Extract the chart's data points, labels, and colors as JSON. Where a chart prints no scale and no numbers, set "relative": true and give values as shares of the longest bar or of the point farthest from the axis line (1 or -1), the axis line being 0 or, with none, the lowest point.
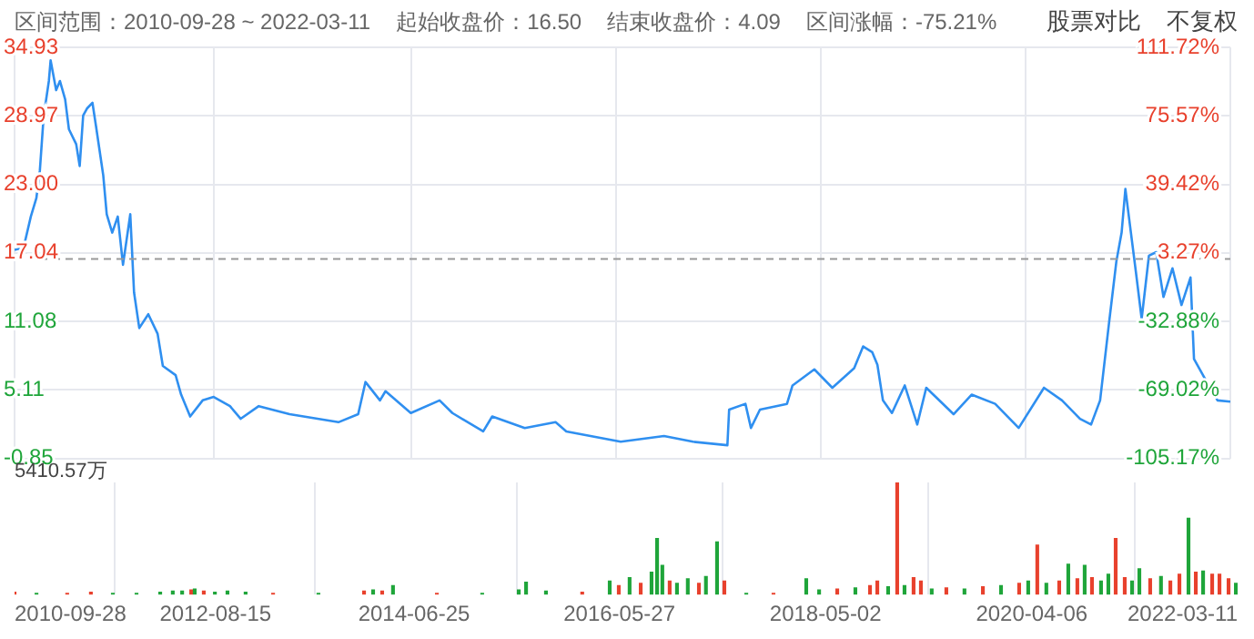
{
  "chart_data": [
    {
      "type": "line",
      "annotations": [
        "区间范围：2010-09-28 ~ 2022-03-11",
        "起始收盘价：16.50",
        "结束收盘价：4.09",
        "区间涨幅：-75.21%",
        "股票对比",
        "不复权"
      ],
      "x": [
        "2010-09-28",
        "2010-10-29",
        "2010-11-23",
        "2010-12-12",
        "2010-12-24",
        "2011-01-06",
        "2011-01-24",
        "2011-01-30",
        "2011-02-18",
        "2011-03-03",
        "2011-03-21",
        "2011-04-03",
        "2011-04-28",
        "2011-05-10",
        "2011-05-22",
        "2011-06-04",
        "2011-06-23",
        "2011-07-05",
        "2011-07-30",
        "2011-08-11",
        "2011-08-30",
        "2011-09-18",
        "2011-10-06",
        "2011-10-31",
        "2011-11-13",
        "2011-12-01",
        "2012-01-01",
        "2012-02-02",
        "2012-02-20",
        "2012-04-04",
        "2012-04-23",
        "2012-05-24",
        "2012-07-06",
        "2012-08-13",
        "2012-10-08",
        "2012-11-14",
        "2013-01-15",
        "2013-05-01",
        "2013-10-16",
        "2013-12-23",
        "2014-01-17",
        "2014-03-08",
        "2014-03-27",
        "2014-06-22",
        "2014-09-29",
        "2014-11-12",
        "2015-02-26",
        "2015-03-29",
        "2015-07-19",
        "2015-11-02",
        "2015-12-09",
        "2016-06-13",
        "2016-11-09",
        "2017-02-17",
        "2017-06-15",
        "2017-06-21",
        "2017-08-16",
        "2017-09-04",
        "2017-10-05",
        "2018-01-06",
        "2018-01-25",
        "2018-04-10",
        "2018-06-11",
        "2018-08-25",
        "2018-09-25",
        "2018-10-26",
        "2018-11-13",
        "2018-12-02",
        "2019-01-02",
        "2019-02-15",
        "2019-03-30",
        "2019-04-30",
        "2019-08-02",
        "2019-10-03",
        "2019-12-23",
        "2020-03-13",
        "2020-06-08",
        "2020-08-09",
        "2020-10-10",
        "2020-11-17",
        "2020-12-18",
        "2021-01-18",
        "2021-02-12",
        "2021-03-02",
        "2021-03-15",
        "2021-04-03",
        "2021-04-21",
        "2021-05-10",
        "2021-06-04",
        "2021-06-29",
        "2021-07-24",
        "2021-08-24",
        "2021-09-24",
        "2021-10-25",
        "2021-11-06",
        "2021-12-20",
        "2022-01-26",
        "2022-03-11"
      ],
      "series": [
        {
          "color": "#2f8ff0",
          "values": [
            17.3,
            17.5,
            20.2,
            21.8,
            24.2,
            28.9,
            32.0,
            33.8,
            31.2,
            32.0,
            30.4,
            27.8,
            26.5,
            24.6,
            29.0,
            29.6,
            30.1,
            28.1,
            23.8,
            20.4,
            18.8,
            20.2,
            16.0,
            20.4,
            13.6,
            10.5,
            11.7,
            10.0,
            7.2,
            6.4,
            4.7,
            2.8,
            4.2,
            4.5,
            3.7,
            2.6,
            3.7,
            3.0,
            2.3,
            3.0,
            5.8,
            4.2,
            5.0,
            3.1,
            4.2,
            3.1,
            1.5,
            2.8,
            1.8,
            2.3,
            1.5,
            0.6,
            1.1,
            0.6,
            0.3,
            3.4,
            3.9,
            1.8,
            3.4,
            3.9,
            5.5,
            6.9,
            5.3,
            7.0,
            8.9,
            8.4,
            7.3,
            4.2,
            3.1,
            5.5,
            2.1,
            5.3,
            3.0,
            4.7,
            3.9,
            1.8,
            5.3,
            4.2,
            2.6,
            2.1,
            4.2,
            11.0,
            16.3,
            18.8,
            22.6,
            18.8,
            15.2,
            11.3,
            16.8,
            17.1,
            13.2,
            15.7,
            12.5,
            14.9,
            7.8,
            5.8,
            4.2,
            4.09
          ]
        }
      ],
      "xlim": [
        "2010-09-28",
        "2022-03-11"
      ],
      "xticks": [
        "2010-09-28",
        "2012-08-15",
        "2014-06-25",
        "2016-05-27",
        "2018-05-02",
        "2020-04-06",
        "2022-03-11"
      ],
      "ylim": [
        -0.85,
        34.93
      ],
      "yticks": [
        -0.85,
        {
          "value": 5.11,
          "label": "5.11"
        },
        11.08,
        17.04,
        {
          "value": 23,
          "label": "23.00"
        },
        28.97,
        34.93
      ],
      "y2lim": [
        -105.17,
        111.72
      ],
      "y2ticks": [
        {
          "value": -105.17,
          "label": "-105.17%"
        },
        {
          "value": -69.02,
          "label": "-69.02%"
        },
        {
          "value": -32.88,
          "label": "-32.88%"
        },
        {
          "value": 3.27,
          "label": "3.27%"
        },
        {
          "value": 39.42,
          "label": "39.42%"
        },
        {
          "value": 75.57,
          "label": "75.57%"
        },
        {
          "value": 111.72,
          "label": "111.72%"
        }
      ],
      "ref_lines": [
        {
          "axis": "y",
          "value": 16.5,
          "color": "#999999",
          "line_style": "dashed"
        }
      ],
      "grid": true,
      "tick_labels": "y",
      "marker": "none"
    },
    {
      "type": "bar",
      "relative": true,
      "annotations": [
        "5410.57万"
      ],
      "x": [
        "2010-09-28",
        "2010-12-12",
        "2011-03-27",
        "2011-06-16",
        "2011-08-30",
        "2011-11-19",
        "2012-02-08",
        "2012-03-22",
        "2012-04-23",
        "2012-05-24",
        "2012-06-05",
        "2012-07-06",
        "2012-08-13",
        "2012-09-25",
        "2012-11-26",
        "2013-02-28",
        "2013-08-02",
        "2014-01-05",
        "2014-02-05",
        "2014-03-08",
        "2014-04-14",
        "2014-09-11",
        "2015-02-13",
        "2015-06-18",
        "2015-07-13",
        "2015-09-19",
        "2016-01-21",
        "2016-04-24",
        "2016-05-25",
        "2016-07-01",
        "2016-08-08",
        "2016-09-14",
        "2016-10-03",
        "2016-10-21",
        "2016-11-15",
        "2016-12-10",
        "2017-01-16",
        "2017-02-23",
        "2017-03-19",
        "2017-04-26",
        "2017-05-21",
        "2017-08-04",
        "2017-11-05",
        "2018-02-25",
        "2018-04-10",
        "2018-06-11",
        "2018-08-12",
        "2018-10-01",
        "2018-10-26",
        "2018-12-02",
        "2019-01-02",
        "2019-01-27",
        "2019-02-27",
        "2019-03-24",
        "2019-04-30",
        "2019-06-19",
        "2019-08-20",
        "2019-10-22",
        "2019-12-23",
        "2020-02-23",
        "2020-03-25",
        "2020-04-25",
        "2020-05-26",
        "2020-07-09",
        "2020-08-09",
        "2020-09-09",
        "2020-10-04",
        "2020-10-29",
        "2020-11-29",
        "2020-12-24",
        "2021-01-18",
        "2021-02-18",
        "2021-03-15",
        "2021-04-09",
        "2021-05-16",
        "2021-06-22",
        "2021-07-24",
        "2021-08-24",
        "2021-09-24",
        "2021-10-19",
        "2021-11-13",
        "2021-12-14",
        "2022-01-08",
        "2022-02-08",
        "2022-03-05"
      ],
      "values": [
        0.02,
        0.01,
        0.01,
        0.02,
        0.01,
        0.01,
        0.02,
        0.03,
        0.03,
        0.04,
        0.05,
        0.03,
        0.02,
        0.03,
        0.02,
        0.01,
        0.01,
        0.03,
        0.04,
        0.03,
        0.08,
        0.01,
        0.01,
        0.04,
        0.11,
        0.03,
        0.02,
        0.12,
        0.08,
        0.15,
        0.1,
        0.2,
        0.5,
        0.26,
        0.12,
        0.1,
        0.14,
        0.1,
        0.16,
        0.47,
        0.12,
        0.01,
        0.01,
        0.14,
        0.04,
        0.05,
        0.06,
        0.08,
        0.12,
        0.07,
        1,
        0.08,
        0.15,
        0.12,
        0.05,
        0.06,
        0.05,
        0.07,
        0.08,
        0.1,
        0.12,
        0.44,
        0.1,
        0.12,
        0.27,
        0.14,
        0.26,
        0.15,
        0.12,
        0.18,
        0.5,
        0.15,
        0.12,
        0.23,
        0.14,
        0.16,
        0.12,
        0.18,
        0.68,
        0.2,
        0.21,
        0.18,
        0.18,
        0.14,
        0.1
      ],
      "colors": [
        "#e8412d",
        "#1fa53a",
        "#e8412d",
        "#e8412d",
        "#1fa53a",
        "#1fa53a",
        "#1fa53a",
        "#1fa53a",
        "#1fa53a",
        "#e8412d",
        "#1fa53a",
        "#e8412d",
        "#1fa53a",
        "#1fa53a",
        "#1fa53a",
        "#e8412d",
        "#1fa53a",
        "#e8412d",
        "#1fa53a",
        "#e8412d",
        "#1fa53a",
        "#e8412d",
        "#1fa53a",
        "#1fa53a",
        "#1fa53a",
        "#1fa53a",
        "#e8412d",
        "#1fa53a",
        "#e8412d",
        "#1fa53a",
        "#e8412d",
        "#1fa53a",
        "#1fa53a",
        "#1fa53a",
        "#e8412d",
        "#1fa53a",
        "#1fa53a",
        "#e8412d",
        "#1fa53a",
        "#1fa53a",
        "#e8412d",
        "#1fa53a",
        "#e8412d",
        "#1fa53a",
        "#1fa53a",
        "#e8412d",
        "#1fa53a",
        "#e8412d",
        "#e8412d",
        "#1fa53a",
        "#e8412d",
        "#1fa53a",
        "#e8412d",
        "#e8412d",
        "#1fa53a",
        "#e8412d",
        "#1fa53a",
        "#e8412d",
        "#1fa53a",
        "#e8412d",
        "#1fa53a",
        "#e8412d",
        "#1fa53a",
        "#e8412d",
        "#1fa53a",
        "#e8412d",
        "#1fa53a",
        "#e8412d",
        "#1fa53a",
        "#1fa53a",
        "#e8412d",
        "#e8412d",
        "#1fa53a",
        "#1fa53a",
        "#e8412d",
        "#1fa53a",
        "#e8412d",
        "#e8412d",
        "#1fa53a",
        "#e8412d",
        "#1fa53a",
        "#e8412d",
        "#e8412d",
        "#e8412d",
        "#1fa53a"
      ],
      "xlim": [
        "2010-09-28",
        "2022-03-11"
      ],
      "xticks": [
        "2010-09-28",
        "2012-08-15",
        "2014-06-25",
        "2016-05-27",
        "2018-05-02",
        "2020-04-06",
        "2022-03-11"
      ],
      "grid": true,
      "tick_labels": "x"
    }
  ]
}
